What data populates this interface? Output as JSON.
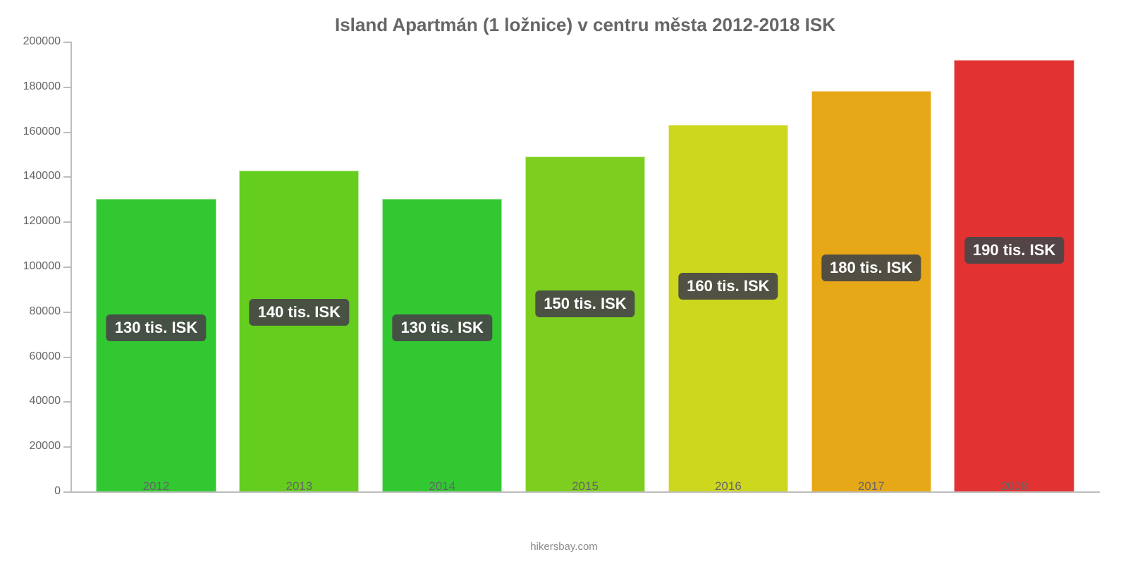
{
  "chart": {
    "type": "bar",
    "title": "Island Apartmán (1 ložnice) v centru města 2012-2018 ISK",
    "title_fontsize": 26,
    "title_color": "#666666",
    "background_color": "#ffffff",
    "axis_color": "#bdbdbd",
    "label_color": "#666666",
    "y": {
      "min": 0,
      "max": 200000,
      "tick_step": 20000,
      "ticks": [
        0,
        20000,
        40000,
        60000,
        80000,
        100000,
        120000,
        140000,
        160000,
        180000,
        200000
      ]
    },
    "categories": [
      "2012",
      "2013",
      "2014",
      "2015",
      "2016",
      "2017",
      "2018"
    ],
    "values": [
      130000,
      142500,
      130000,
      149000,
      163000,
      178000,
      192000
    ],
    "bar_colors": [
      "#32c832",
      "#64cd1e",
      "#32c832",
      "#7dce1e",
      "#cdd71e",
      "#e6a817",
      "#e33232"
    ],
    "bar_labels": [
      "130 tis. ISK",
      "140 tis. ISK",
      "130 tis. ISK",
      "150 tis. ISK",
      "160 tis. ISK",
      "180 tis. ISK",
      "190 tis. ISK"
    ],
    "bar_width_pct": 84,
    "badge_bg": "rgba(70,70,70,0.92)",
    "badge_color": "#ffffff",
    "badge_fontsize": 22,
    "credit": "hikersbay.com",
    "credit_color": "#8a8a8a"
  }
}
